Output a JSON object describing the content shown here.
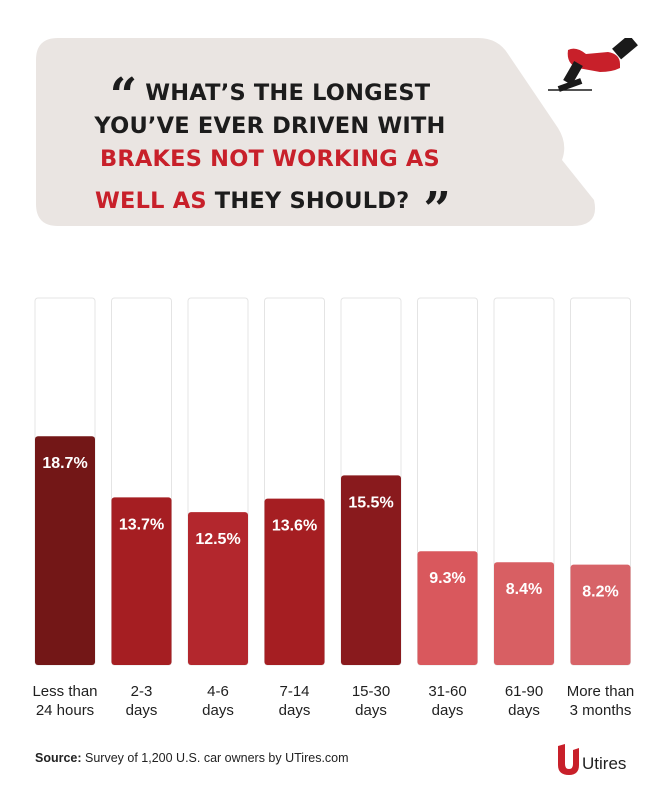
{
  "question": {
    "part1": "WHAT’S THE LONGEST YOU’VE EVER DRIVEN WITH ",
    "highlight": "BRAKES NOT WORKING AS WELL AS",
    "part2": " THEY SHOULD?"
  },
  "chart_data": {
    "type": "bar",
    "title": "WHAT’S THE LONGEST YOU’VE EVER DRIVEN WITH BRAKES NOT WORKING AS WELL AS THEY SHOULD?",
    "categories": [
      [
        "Less than",
        "24 hours"
      ],
      [
        "2-3",
        "days"
      ],
      [
        "4-6",
        "days"
      ],
      [
        "7-14",
        "days"
      ],
      [
        "15-30",
        "days"
      ],
      [
        "31-60",
        "days"
      ],
      [
        "61-90",
        "days"
      ],
      [
        "More than",
        "3 months"
      ]
    ],
    "values": [
      18.7,
      13.7,
      12.5,
      13.6,
      15.5,
      9.3,
      8.4,
      8.2
    ],
    "value_labels": [
      "18.7%",
      "13.7%",
      "12.5%",
      "13.6%",
      "15.5%",
      "9.3%",
      "8.4%",
      "8.2%"
    ],
    "bar_colors": [
      "#731717",
      "#a51e22",
      "#b3272d",
      "#a51e22",
      "#891a1d",
      "#d9585d",
      "#d85f63",
      "#d76368"
    ],
    "ylim": [
      0,
      30
    ],
    "xlabel": "",
    "ylabel": "",
    "grid": false
  },
  "source": {
    "label": "Source:",
    "text": " Survey of 1,200 U.S. car owners by UTires.com"
  },
  "brand": {
    "name": "Utires",
    "color": "#c8202a"
  },
  "icons": {
    "quote_open": "“",
    "quote_close": "”",
    "brake": "brake-pedal-icon",
    "logo": "utires-logo-icon"
  }
}
